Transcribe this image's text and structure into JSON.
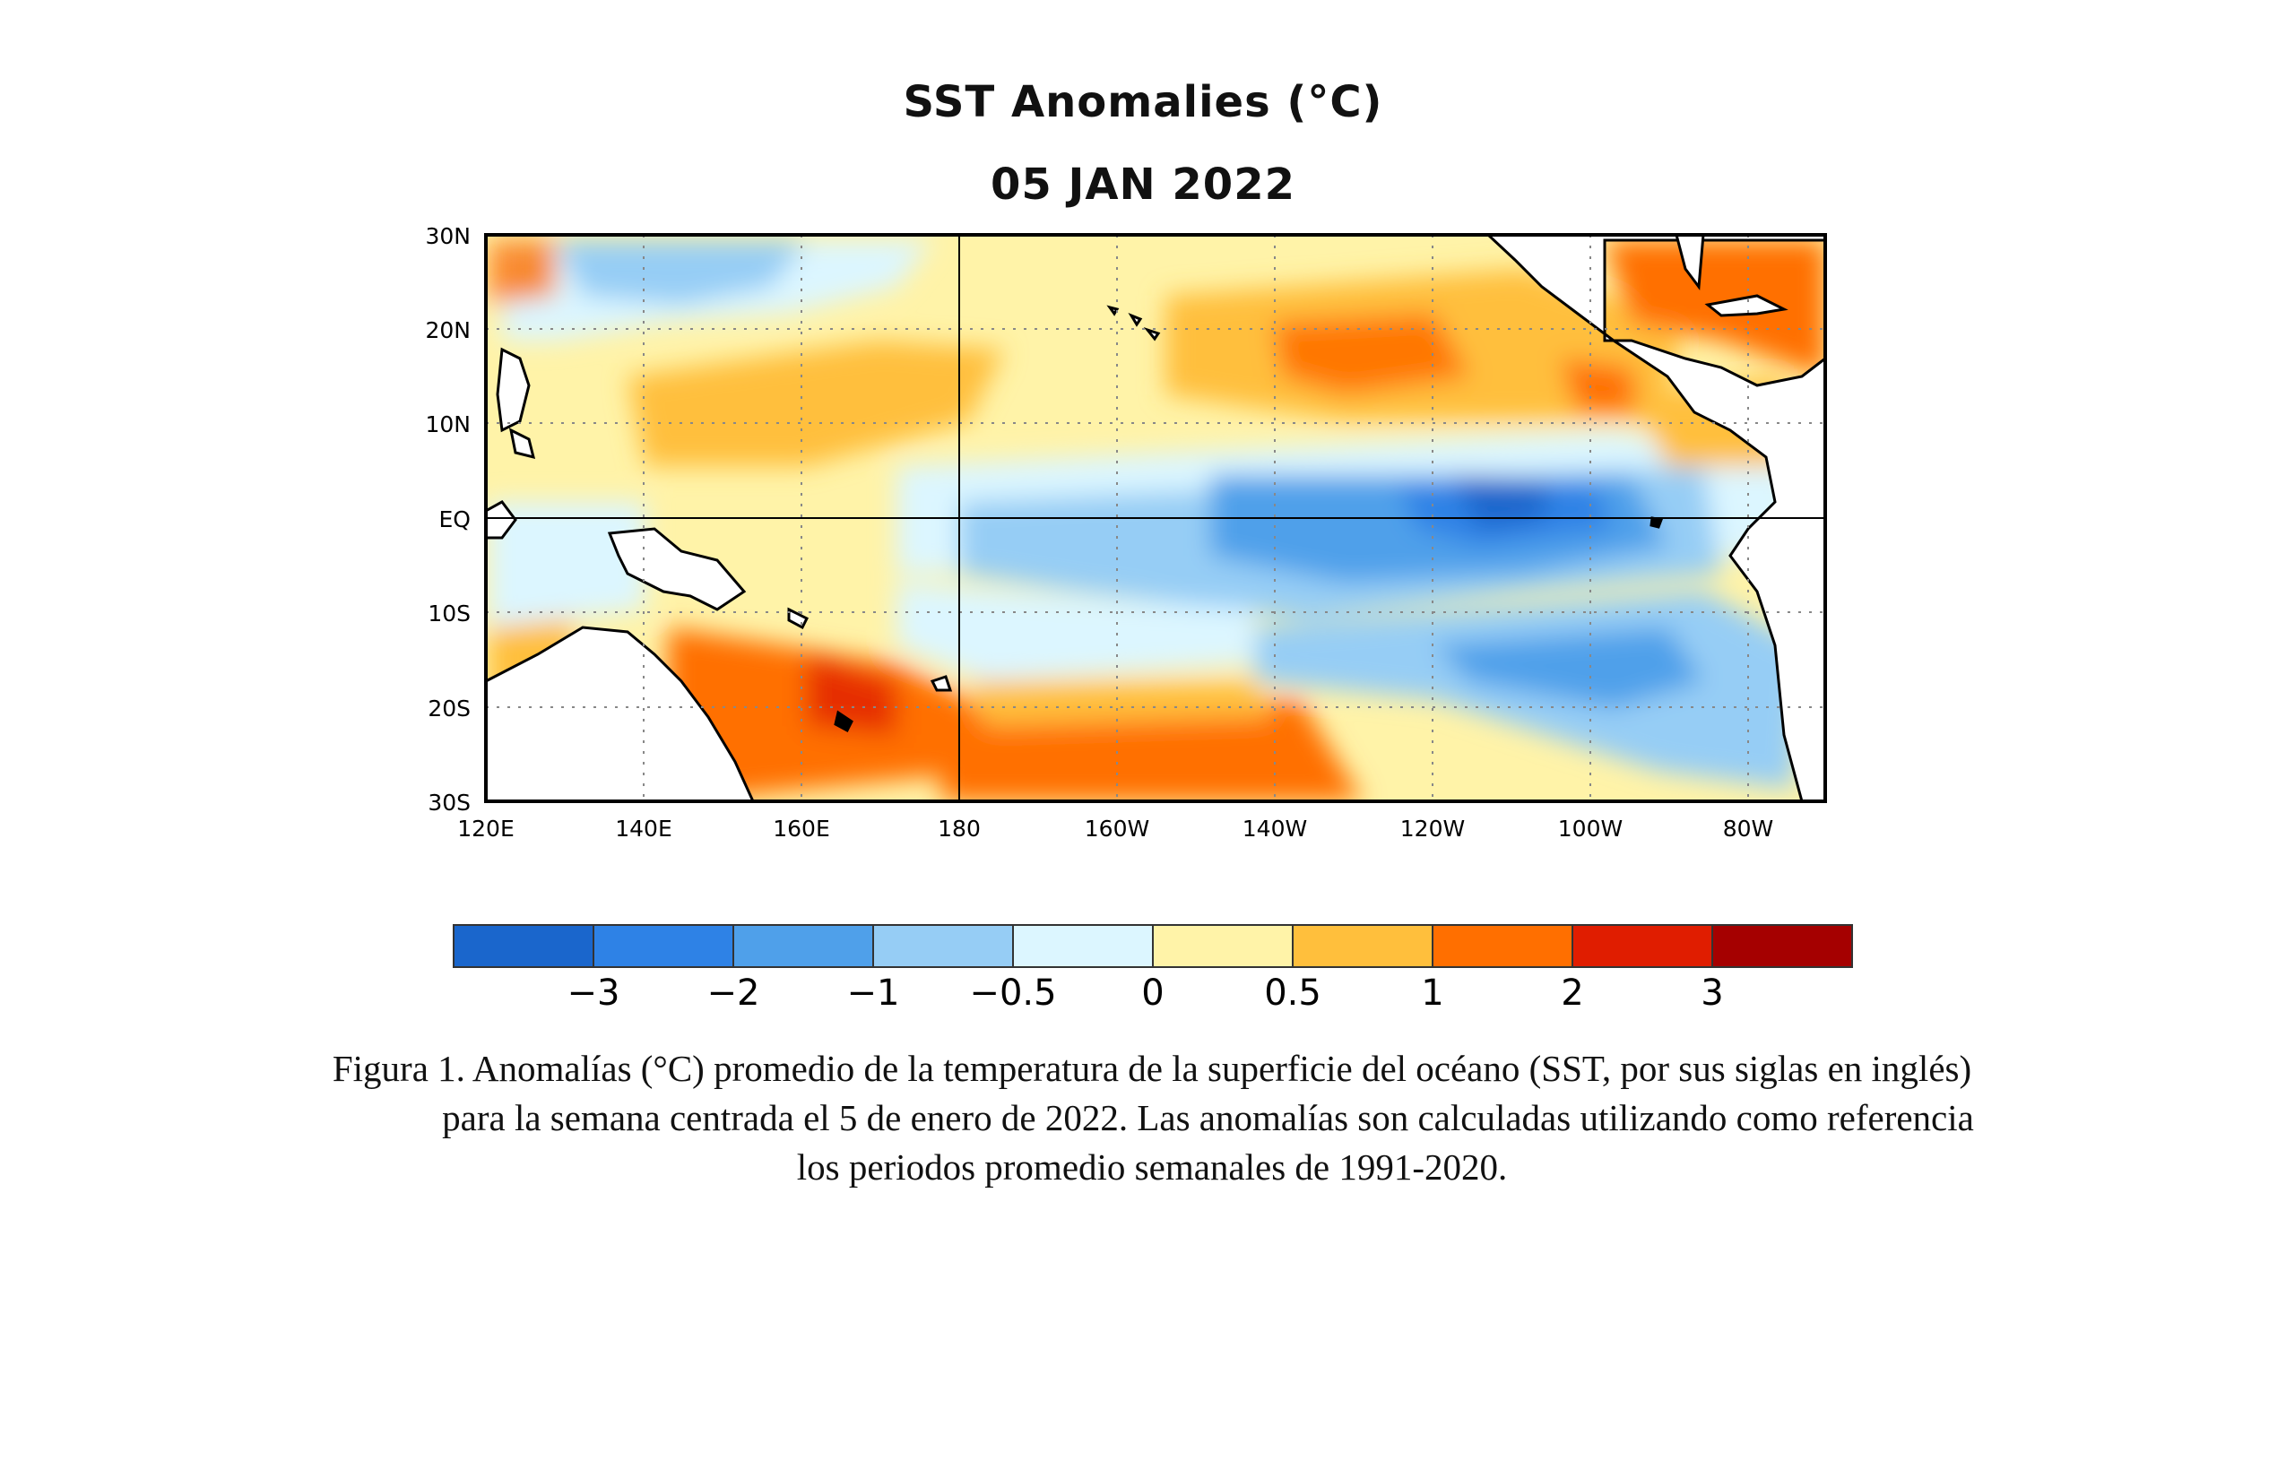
{
  "figure": {
    "title": "SST Anomalies (°C)",
    "date": "05 JAN 2022"
  },
  "map": {
    "projection": "equirectangular",
    "lon_range": [
      "120E",
      "70W"
    ],
    "lat_range": [
      "30S",
      "30N"
    ],
    "lat_labels": [
      "30N",
      "20N",
      "10N",
      "EQ",
      "10S",
      "20S",
      "30S"
    ],
    "lon_labels": [
      "120E",
      "140E",
      "160E",
      "180",
      "160W",
      "140W",
      "120W",
      "100W",
      "80W"
    ],
    "grid": "dotted, every 20° longitude and 10° latitude; solid lines at equator and 180"
  },
  "colorbar": {
    "tick_labels": [
      "−3",
      "−2",
      "−1",
      "−0.5",
      "0",
      "0.5",
      "1",
      "2",
      "3"
    ],
    "colors": [
      "#1a66cc",
      "#2e82e6",
      "#4fa0ea",
      "#96cdf5",
      "#dcf6ff",
      "#fff3a8",
      "#ffbf3c",
      "#ff6f00",
      "#e01d00",
      "#a50000"
    ]
  },
  "caption": {
    "line1": "Figura 1. Anomalías (°C) promedio de la temperatura de la superficie del océano (SST, por sus siglas en inglés)",
    "line2": "para la semana centrada el 5 de enero de 2022. Las anomalías son calculadas utilizando como referencia",
    "line3": "los periodos promedio semanales de 1991-2020."
  }
}
